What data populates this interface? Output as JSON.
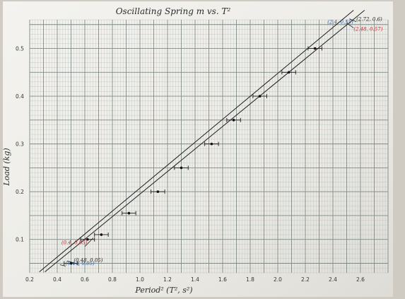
{
  "chart_data": {
    "type": "scatter",
    "title": "Oscillating Spring   m vs. T²",
    "xlabel": "Period² (T², s²)",
    "ylabel": "Load (kg)",
    "xlim": [
      0.2,
      2.8
    ],
    "ylim": [
      0.03,
      0.56
    ],
    "x_ticks": [
      0.2,
      0.4,
      0.6,
      0.8,
      1.0,
      1.2,
      1.4,
      1.6,
      1.8,
      2.0,
      2.2,
      2.4,
      2.6
    ],
    "x_tick_labels": [
      "0.2",
      "0.4",
      "0.6",
      "0.8",
      "1.0",
      "1.2",
      "1.4",
      "1.6",
      "1.8",
      "2.0",
      "2.2",
      "2.4",
      "2.6"
    ],
    "y_ticks": [
      0.1,
      0.2,
      0.3,
      0.4,
      0.5
    ],
    "y_tick_labels": [
      "0.1",
      "0.2",
      "0.3",
      "0.4",
      "0.5"
    ],
    "grid": true,
    "series": [
      {
        "x": [
          0.5,
          0.62,
          0.72,
          0.92,
          1.13,
          1.3,
          1.52,
          1.68,
          1.87,
          2.08,
          2.27
        ],
        "y": [
          0.05,
          0.1,
          0.11,
          0.155,
          0.2,
          0.25,
          0.3,
          0.35,
          0.4,
          0.45,
          0.5
        ],
        "x_error": 0.05
      }
    ],
    "fit_lines": [
      {
        "x": [
          0.27,
          2.55
        ],
        "y": [
          0.032,
          0.58
        ]
      },
      {
        "x": [
          0.31,
          2.63
        ],
        "y": [
          0.032,
          0.58
        ]
      }
    ],
    "annotations": [
      {
        "text": "(0.4, 0.05)",
        "x": 0.43,
        "y": 0.09,
        "color": "#b0303a"
      },
      {
        "text": "(0.48, 0.05)",
        "x": 0.52,
        "y": 0.053,
        "color": "#222222"
      },
      {
        "text": "(0.44, 0.05)",
        "x": 0.46,
        "y": 0.046,
        "color": "#2d5fa0"
      },
      {
        "text": "(2.4, 0.55)",
        "x": 2.36,
        "y": 0.552,
        "color": "#2d5fa0"
      },
      {
        "text": "(2.72, 0.6)",
        "x": 2.57,
        "y": 0.558,
        "color": "#222222"
      },
      {
        "text": "(2.48, 0.57)",
        "x": 2.55,
        "y": 0.537,
        "color": "#b0303a"
      }
    ]
  }
}
